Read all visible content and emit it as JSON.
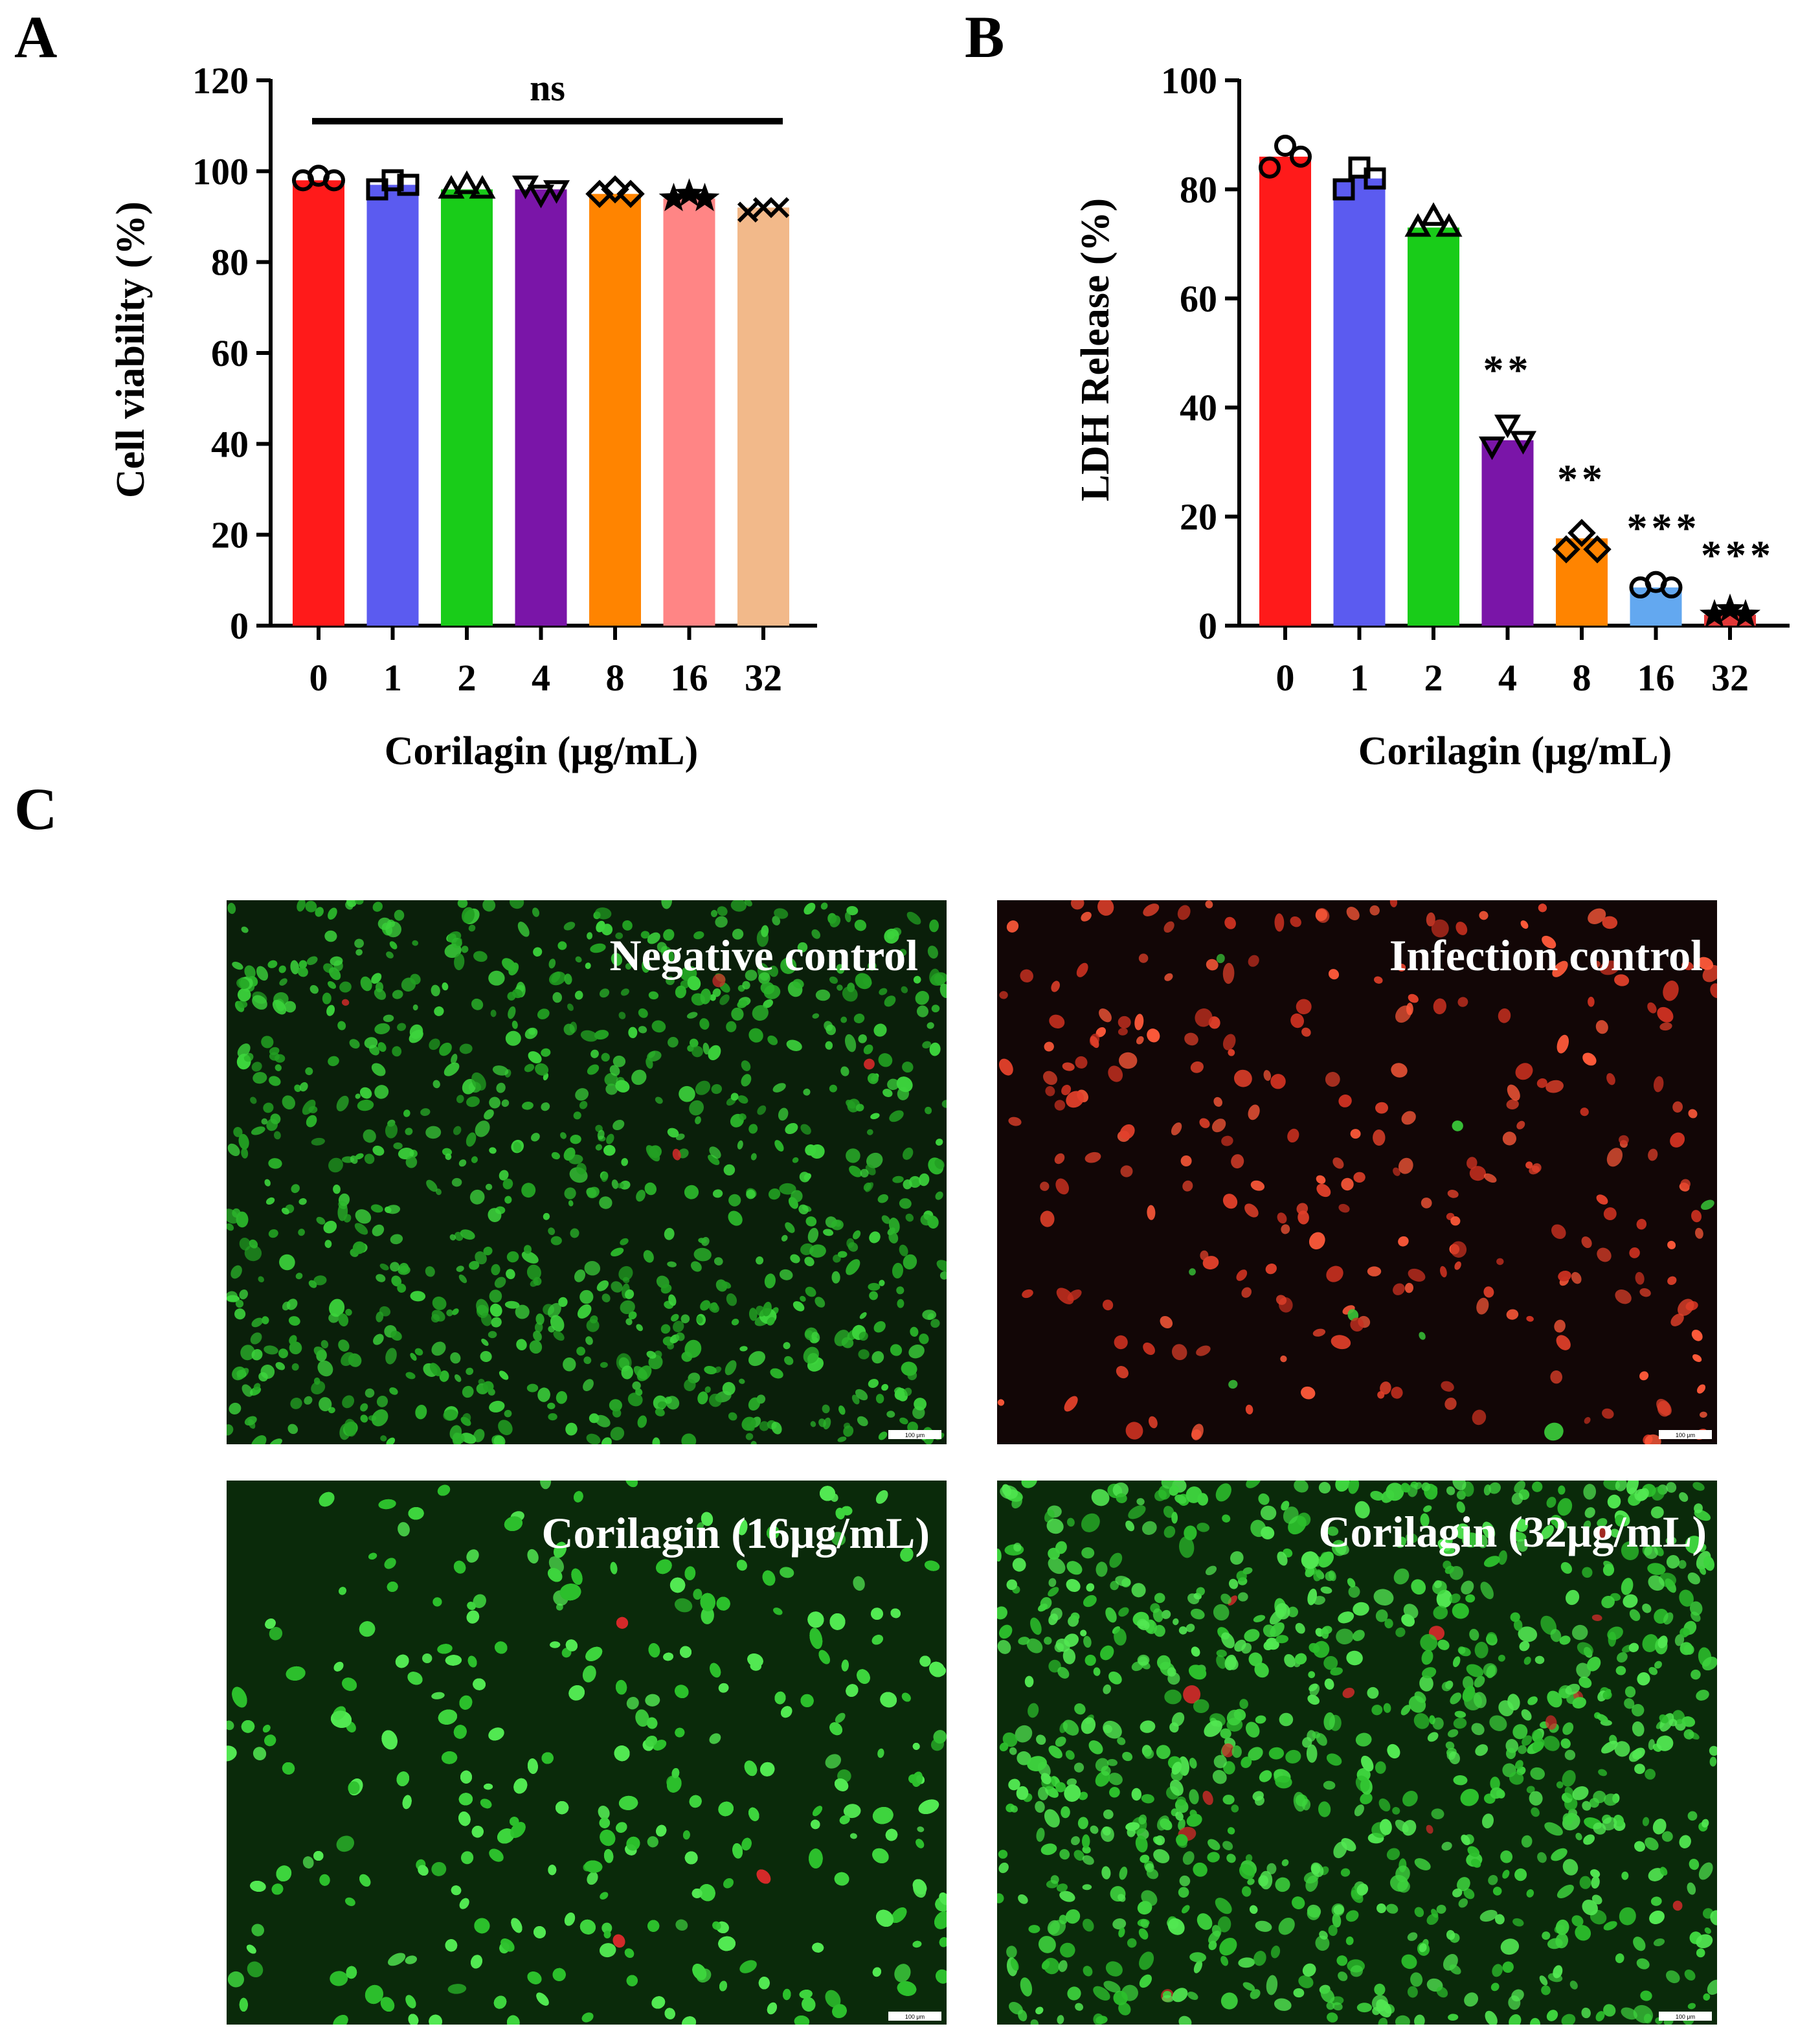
{
  "panel_labels": [
    "A",
    "B",
    "C"
  ],
  "chart_data": [
    {
      "type": "bar",
      "title": "",
      "xlabel": "Corilagin (μg/mL)",
      "ylabel": "Cell viability (%)",
      "categories": [
        "0",
        "1",
        "2",
        "4",
        "8",
        "16",
        "32"
      ],
      "values": [
        98,
        97,
        96,
        96,
        95,
        94,
        92
      ],
      "points": [
        [
          98,
          99,
          98
        ],
        [
          96,
          98,
          97
        ],
        [
          96,
          97,
          96
        ],
        [
          97,
          95,
          96
        ],
        [
          95,
          96,
          95
        ],
        [
          94,
          95,
          94
        ],
        [
          91,
          92,
          92
        ]
      ],
      "markers": [
        "circle",
        "square",
        "triangle",
        "triangle-down",
        "diamond",
        "star",
        "x"
      ],
      "colors": [
        "#ff1a1a",
        "#5b5bf0",
        "#19cc19",
        "#7a15a8",
        "#ff8400",
        "#ff8585",
        "#f2b98a"
      ],
      "ylim": [
        0,
        120
      ],
      "yticks": [
        0,
        20,
        40,
        60,
        80,
        100,
        120
      ],
      "significance": [
        {
          "label": "ns",
          "from": 0,
          "to": 6,
          "y": 111
        }
      ]
    },
    {
      "type": "bar",
      "title": "",
      "xlabel": "Corilagin (μg/mL)",
      "ylabel": "LDH Release (%)",
      "categories": [
        "0",
        "1",
        "2",
        "4",
        "8",
        "16",
        "32"
      ],
      "values": [
        86,
        82,
        73,
        34,
        16,
        7,
        2
      ],
      "points": [
        [
          84,
          88,
          86
        ],
        [
          80,
          84,
          82
        ],
        [
          73,
          75,
          73
        ],
        [
          33,
          37,
          34
        ],
        [
          14,
          17,
          14
        ],
        [
          7,
          8,
          7
        ],
        [
          2,
          3,
          2
        ]
      ],
      "markers": [
        "circle",
        "square",
        "triangle",
        "triangle-down",
        "diamond",
        "circle",
        "star"
      ],
      "colors": [
        "#ff1a1a",
        "#5b5bf0",
        "#19cc19",
        "#7a15a8",
        "#ff8400",
        "#63a8f0",
        "#e23838"
      ],
      "ylim": [
        0,
        100
      ],
      "yticks": [
        0,
        20,
        40,
        60,
        80,
        100
      ],
      "significance": [
        {
          "index": 3,
          "label": "**"
        },
        {
          "index": 4,
          "label": "**"
        },
        {
          "index": 5,
          "label": "***"
        },
        {
          "index": 6,
          "label": "***"
        }
      ]
    }
  ],
  "micrographs": [
    {
      "label": "Negative control",
      "palette": "green"
    },
    {
      "label": "Infection control",
      "palette": "red"
    },
    {
      "label": "Corilagin (16μg/mL)",
      "palette": "green-dense"
    },
    {
      "label": "Corilagin (32μg/mL)",
      "palette": "green-dense"
    }
  ],
  "scale_bar_text": "100 μm"
}
